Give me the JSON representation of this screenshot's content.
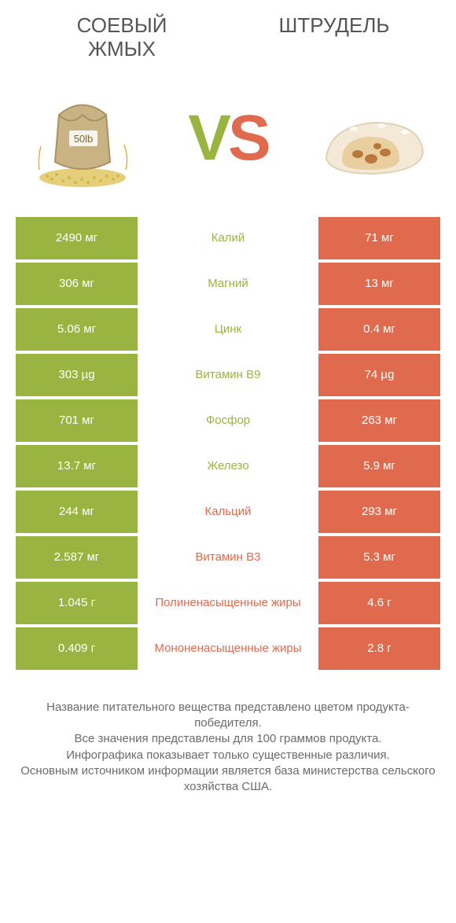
{
  "titles": {
    "left": "СОЕВЫЙ\nЖМЫХ",
    "right": "ШТРУДЕЛЬ"
  },
  "vs": {
    "v": "V",
    "s": "S"
  },
  "colors": {
    "green": "#9ab441",
    "orange": "#df6a4d",
    "text_mid_green": "#9ab441",
    "text_mid_orange": "#df6a4d",
    "footer_text": "#6b6b6b",
    "background": "#ffffff"
  },
  "rows": [
    {
      "left": "2490 мг",
      "mid": "Калий",
      "right": "71 мг",
      "winner": "left"
    },
    {
      "left": "306 мг",
      "mid": "Магний",
      "right": "13 мг",
      "winner": "left"
    },
    {
      "left": "5.06 мг",
      "mid": "Цинк",
      "right": "0.4 мг",
      "winner": "left"
    },
    {
      "left": "303 µg",
      "mid": "Витамин B9",
      "right": "74 µg",
      "winner": "left"
    },
    {
      "left": "701 мг",
      "mid": "Фосфор",
      "right": "263 мг",
      "winner": "left"
    },
    {
      "left": "13.7 мг",
      "mid": "Железо",
      "right": "5.9 мг",
      "winner": "left"
    },
    {
      "left": "244 мг",
      "mid": "Кальций",
      "right": "293 мг",
      "winner": "right"
    },
    {
      "left": "2.587 мг",
      "mid": "Витамин B3",
      "right": "5.3 мг",
      "winner": "right"
    },
    {
      "left": "1.045 г",
      "mid": "Полиненасыщенные жиры",
      "right": "4.6 г",
      "winner": "right"
    },
    {
      "left": "0.409 г",
      "mid": "Мононенасыщенные жиры",
      "right": "2.8 г",
      "winner": "right"
    }
  ],
  "footer": "Название питательного вещества представлено цветом продукта-победителя.\nВсе значения представлены для 100 граммов продукта.\nИнфографика показывает только существенные различия.\nОсновным источником информации является база министерства сельского хозяйства США.",
  "product_left_label": "50lb"
}
